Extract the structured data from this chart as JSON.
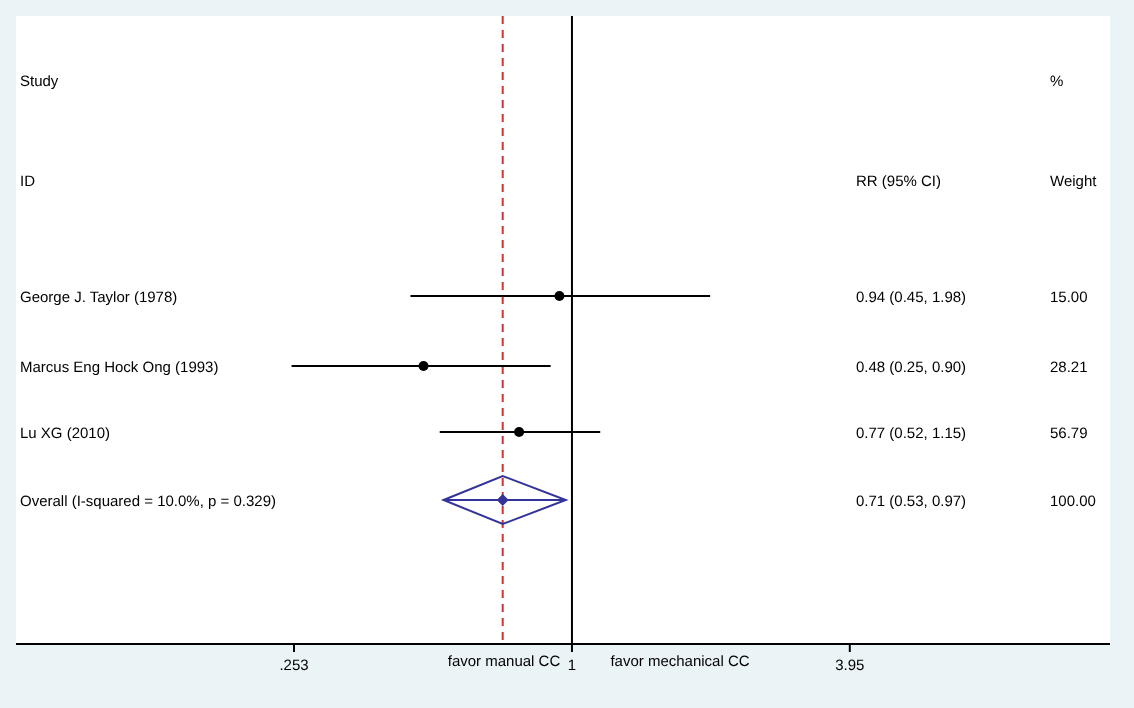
{
  "chart_data": {
    "type": "scatter",
    "orientation": "horizontal",
    "log": "x",
    "categories": [
      "George J. Taylor (1978)",
      "Marcus Eng Hock Ong (1993)",
      "Lu XG (2010)",
      "Overall  (I-squared = 10.0%, p = 0.329)"
    ],
    "series": [
      {
        "marker": "circle",
        "color": "#000000",
        "values": [
          0.94,
          0.48,
          0.77,
          null
        ],
        "errors": [
          [
            0.45,
            1.98
          ],
          [
            0.25,
            0.9
          ],
          [
            0.52,
            1.15
          ],
          null
        ]
      },
      {
        "marker": "diamond",
        "color": "#333399",
        "values": [
          null,
          null,
          null,
          0.71
        ],
        "errors": [
          null,
          null,
          null,
          [
            0.53,
            0.97
          ]
        ]
      }
    ],
    "xlim": [
      0.064,
      14.3
    ],
    "xticks": [
      {
        "value": 0.253,
        "label": ".253"
      },
      1,
      3.95
    ],
    "ref_lines": [
      {
        "axis": "x",
        "value": 1,
        "color": "#000000",
        "line_style": "solid"
      },
      {
        "axis": "x",
        "value": 0.71,
        "color": "#cc3333",
        "line_style": "dashed"
      }
    ],
    "annotations": [
      "Study",
      "ID",
      "RR (95% CI)",
      "%",
      "Weight",
      "favor manual CC",
      "favor mechanical CC",
      "15.00",
      "28.21",
      "56.79",
      "100.00",
      "0.94 (0.45, 1.98)",
      "0.48 (0.25, 0.90)",
      "0.77 (0.52, 1.15)",
      "0.71 (0.53, 0.97)"
    ],
    "grid": false
  }
}
